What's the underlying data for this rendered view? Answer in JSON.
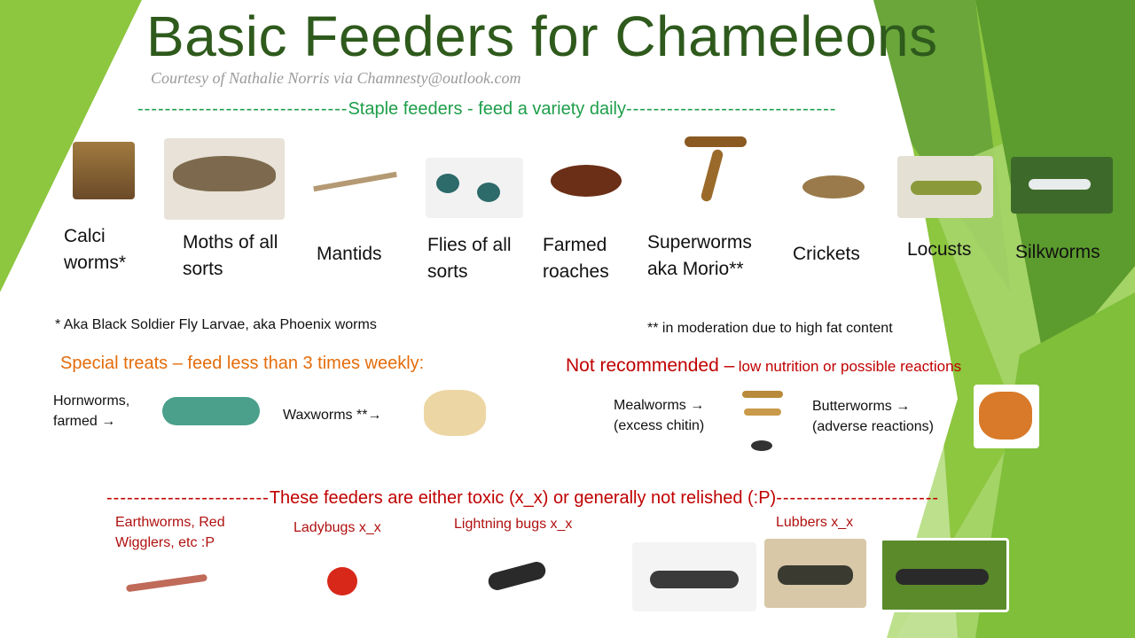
{
  "title": "Basic Feeders for Chameleons",
  "credit": "Courtesy of Nathalie Norris via Chamnesty@outlook.com",
  "staple": {
    "header": "Staple feeders - feed a variety daily",
    "items": [
      {
        "label": "Calci worms*",
        "icon": "calci-worm-photo"
      },
      {
        "label": "Moths of all sorts",
        "icon": "moth-photo"
      },
      {
        "label": "Mantids",
        "icon": "mantis-photo"
      },
      {
        "label": "Flies of all sorts",
        "icon": "fly-photo"
      },
      {
        "label": "Farmed roaches",
        "icon": "roach-photo"
      },
      {
        "label": "Superworms aka Morio**",
        "icon": "superworm-photo"
      },
      {
        "label": "Crickets",
        "icon": "cricket-photo"
      },
      {
        "label": "Locusts",
        "icon": "locust-photo"
      },
      {
        "label": "Silkworms",
        "icon": "silkworm-photo"
      }
    ],
    "note1": "* Aka Black Soldier Fly Larvae, aka Phoenix worms",
    "note2": "** in moderation due to high fat content"
  },
  "treats": {
    "header": "Special treats – feed less than 3 times weekly:",
    "hornworms": "Hornworms, farmed →",
    "waxworms": "Waxworms **→"
  },
  "not_recommended": {
    "header": "Not recommended –",
    "subheader": "low nutrition or possible reactions",
    "mealworms_1": "Mealworms →",
    "mealworms_2": "(excess chitin)",
    "butterworms_1": "Butterworms →",
    "butterworms_2": "(adverse reactions)"
  },
  "toxic": {
    "header": "These feeders are either toxic (x_x) or generally  not relished (:P)",
    "earthworms": "Earthworms, Red Wigglers, etc :P",
    "ladybugs": "Ladybugs x_x",
    "lightning": "Lightning bugs x_x",
    "lubbers": "Lubbers x_x"
  },
  "colors": {
    "title": "#2e5a1c",
    "staple": "#1e9e4a",
    "treats": "#e46c0a",
    "toxic": "#c00000",
    "accent_green": "#8dc63f"
  }
}
